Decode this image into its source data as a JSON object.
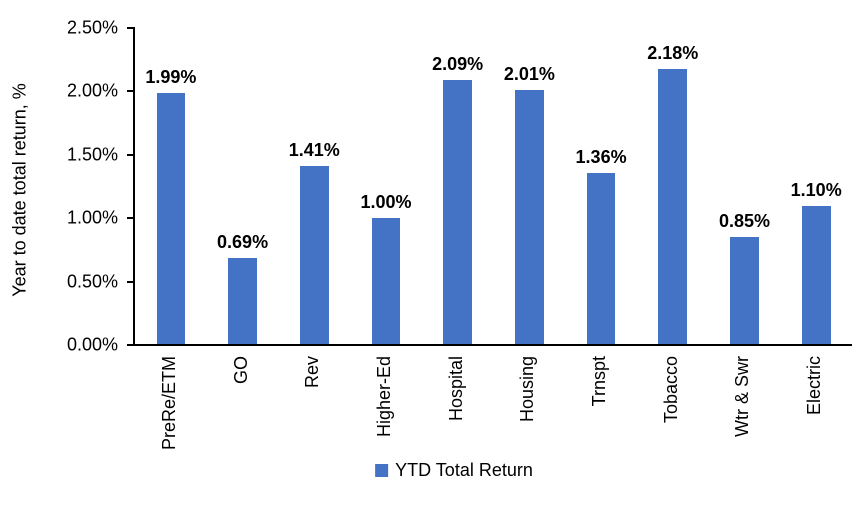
{
  "chart_data": {
    "type": "bar",
    "categories": [
      "PreRe/ETM",
      "GO",
      "Rev",
      "Higher-Ed",
      "Hospital",
      "Housing",
      "Trnspt",
      "Tobacco",
      "Wtr & Swr",
      "Electric"
    ],
    "values": [
      1.99,
      0.69,
      1.41,
      1.0,
      2.09,
      2.01,
      1.36,
      2.18,
      0.85,
      1.1
    ],
    "data_labels": [
      "1.99%",
      "0.69%",
      "1.41%",
      "1.00%",
      "2.09%",
      "2.01%",
      "1.36%",
      "2.18%",
      "0.85%",
      "1.10%"
    ],
    "title": "",
    "xlabel": "",
    "ylabel": "Year to date total return, %",
    "ylim": [
      0,
      2.5
    ],
    "yticks": [
      {
        "value": 0.0,
        "label": "0.00%"
      },
      {
        "value": 0.5,
        "label": "0.50%"
      },
      {
        "value": 1.0,
        "label": "1.00%"
      },
      {
        "value": 1.5,
        "label": "1.50%"
      },
      {
        "value": 2.0,
        "label": "2.00%"
      },
      {
        "value": 2.5,
        "label": "2.50%"
      }
    ],
    "legend": [
      {
        "label": "YTD Total Return"
      }
    ],
    "legend_position": "bottom",
    "grid": false,
    "colors": {
      "bar": "#4472C4",
      "axis": "#000000",
      "text": "#000000",
      "background": "#FFFFFF"
    }
  }
}
